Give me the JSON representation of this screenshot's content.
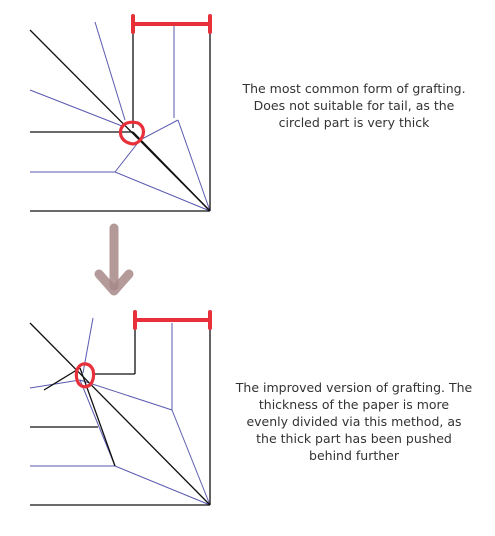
{
  "colors": {
    "crease_black": "#111111",
    "crease_blue": "#5a5ab0",
    "highlight_red": "#e8303a",
    "arrow": "#a88888",
    "text": "#333333"
  },
  "captions": {
    "top": [
      "The most common form of grafting.",
      "Does not suitable for tail, as the",
      "circled part is very thick"
    ],
    "bottom": [
      "The improved version of grafting. The",
      "thickness of the paper is more",
      "evenly divided via this method, as",
      "the thick part has been pushed",
      "behind further"
    ]
  },
  "annotations": {
    "top_diagram": [
      "width-marker",
      "thick-point-circle"
    ],
    "bottom_diagram": [
      "width-marker",
      "thick-point-circle"
    ],
    "transition": "down-arrow-icon"
  }
}
